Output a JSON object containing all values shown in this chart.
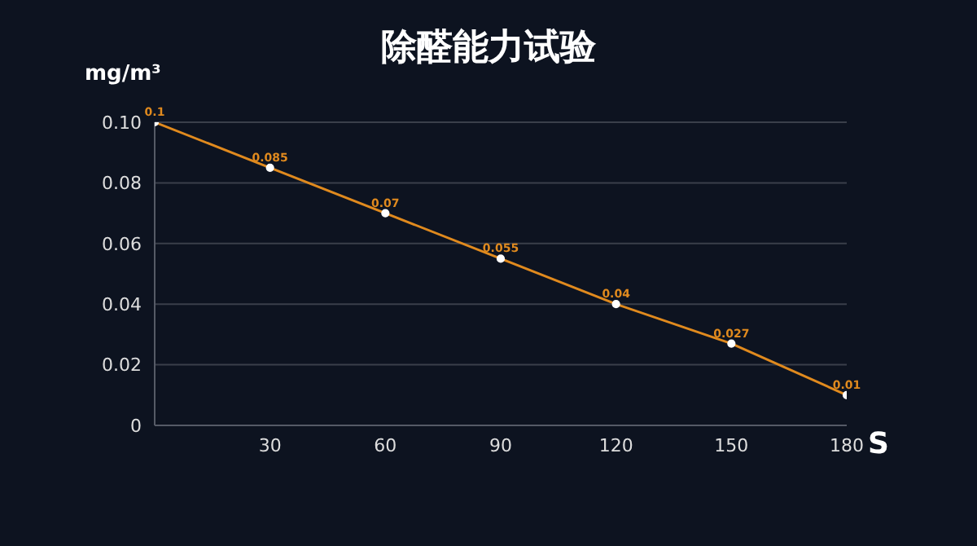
{
  "chart_data": {
    "type": "line",
    "title": "除醛能力试验",
    "xlabel": "S",
    "ylabel": "mg/m³",
    "x": [
      0,
      30,
      60,
      90,
      120,
      150,
      180
    ],
    "series": [
      {
        "color": "#e08a1e",
        "values": [
          0.1,
          0.085,
          0.07,
          0.055,
          0.04,
          0.027,
          0.01
        ]
      }
    ],
    "xlim": [
      0,
      180
    ],
    "xticks": [
      30,
      60,
      90,
      120,
      150,
      180
    ],
    "ylim": [
      0,
      0.1
    ],
    "yticks": [
      0,
      {
        "value": 0.02,
        "label": "0.02"
      },
      {
        "value": 0.04,
        "label": "0.04"
      },
      {
        "value": 0.06,
        "label": "0.06"
      },
      {
        "value": 0.08,
        "label": "0.08"
      },
      {
        "value": 0.1,
        "label": "0.10"
      }
    ],
    "grid": "y",
    "marker": "circle",
    "line_style": "solid",
    "data_labels": true,
    "legend": false
  }
}
